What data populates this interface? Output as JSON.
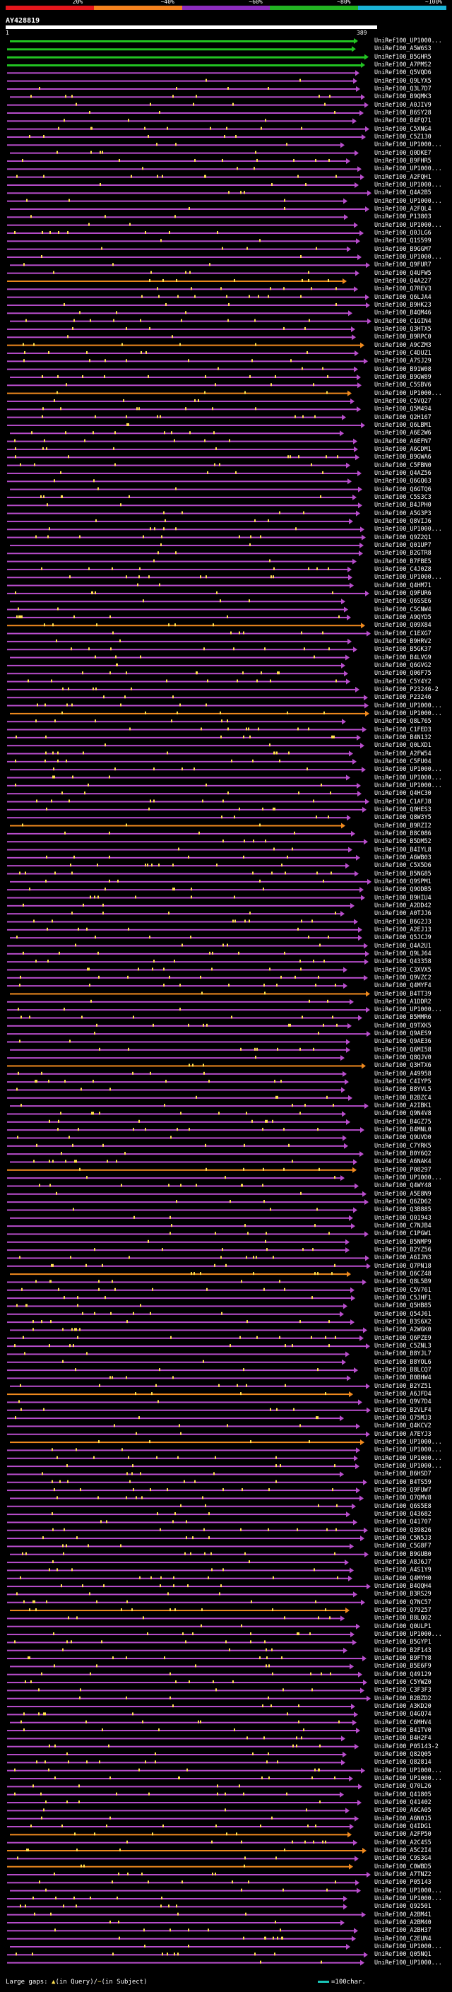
{
  "query": {
    "name": "AY428819",
    "start": "1",
    "end": "389"
  },
  "percent_scale": [
    {
      "label": "20%",
      "color": "#e4161c"
    },
    {
      "label": "~40%",
      "color": "#f5821e"
    },
    {
      "label": "~60%",
      "color": "#8c2cbe"
    },
    {
      "label": "~80%",
      "color": "#22b422"
    },
    {
      "label": "~100%",
      "color": "#1ab3d6"
    }
  ],
  "legend": {
    "large_gaps": "Large gaps: ",
    "in_query": "(in Query)",
    "separator": "/",
    "in_subject": "(in Subject)",
    "scale": "=100char."
  },
  "colors": {
    "green": "#22c322",
    "magenta": "#b84dcc",
    "orange": "#f08a1e",
    "yellow": "#ffe14d",
    "arrow": "#ffd24a"
  },
  "hits": [
    {
      "id": "UniRef100_UP1000...",
      "c": "green"
    },
    {
      "id": "UniRef100_A5W6S3",
      "c": "green"
    },
    {
      "id": "UniRef100_B5GHR5",
      "c": "green"
    },
    {
      "id": "UniRef100_A7PMS2",
      "c": "green"
    },
    {
      "id": "UniRef100_Q5VQD6",
      "c": "magenta"
    },
    {
      "id": "UniRef100_Q9LYX5",
      "c": "magenta"
    },
    {
      "id": "UniRef100_Q3L7D7",
      "c": "magenta"
    },
    {
      "id": "UniRef100_B9QMK3",
      "c": "magenta"
    },
    {
      "id": "UniRef100_A0JIV9",
      "c": "magenta"
    },
    {
      "id": "UniRef100_B6SY28",
      "c": "magenta"
    },
    {
      "id": "UniRef100_B4FQ71",
      "c": "magenta"
    },
    {
      "id": "UniRef100_C5XNG4",
      "c": "magenta"
    },
    {
      "id": "UniRef100_C5Z130",
      "c": "magenta"
    },
    {
      "id": "UniRef100_UP1000...",
      "c": "magenta"
    },
    {
      "id": "UniRef100_Q0DKE7",
      "c": "magenta"
    },
    {
      "id": "UniRef100_B9FHR5",
      "c": "magenta"
    },
    {
      "id": "UniRef100_UP1000...",
      "c": "magenta"
    },
    {
      "id": "UniRef100_A2FQH1",
      "c": "magenta"
    },
    {
      "id": "UniRef100_UP1000...",
      "c": "magenta"
    },
    {
      "id": "UniRef100_Q4A2B5",
      "c": "magenta"
    },
    {
      "id": "UniRef100_UP1000...",
      "c": "magenta"
    },
    {
      "id": "UniRef100_A2FQL4",
      "c": "magenta"
    },
    {
      "id": "UniRef100_P13803",
      "c": "magenta"
    },
    {
      "id": "UniRef100_UP1000...",
      "c": "magenta"
    },
    {
      "id": "UniRef100_Q0JLG6",
      "c": "magenta"
    },
    {
      "id": "UniRef100_Q1S599",
      "c": "magenta"
    },
    {
      "id": "UniRef100_B9GGM7",
      "c": "magenta"
    },
    {
      "id": "UniRef100_UP1000...",
      "c": "magenta"
    },
    {
      "id": "UniRef100_Q9FUR7",
      "c": "magenta"
    },
    {
      "id": "UniRef100_Q4UFW5",
      "c": "magenta"
    },
    {
      "id": "UniRef100_Q4A227",
      "c": "orange"
    },
    {
      "id": "UniRef100_Q7REV3",
      "c": "magenta"
    },
    {
      "id": "UniRef100_Q6LJA4",
      "c": "magenta"
    },
    {
      "id": "UniRef100_B9HK23",
      "c": "magenta"
    },
    {
      "id": "UniRef100_B4QM46",
      "c": "magenta"
    },
    {
      "id": "UniRef100_C1GIN4",
      "c": "magenta"
    },
    {
      "id": "UniRef100_Q3HTX5",
      "c": "magenta"
    },
    {
      "id": "UniRef100_B9RPC0",
      "c": "magenta"
    },
    {
      "id": "UniRef100_A9CZM3",
      "c": "orange"
    },
    {
      "id": "UniRef100_C4DUZ1",
      "c": "magenta"
    },
    {
      "id": "UniRef100_A7SJ29",
      "c": "magenta"
    },
    {
      "id": "UniRef100_B91W08",
      "c": "magenta"
    },
    {
      "id": "UniRef100_B9GW89",
      "c": "magenta"
    },
    {
      "id": "UniRef100_C5SBV6",
      "c": "magenta"
    },
    {
      "id": "UniRef100_UP1000...",
      "c": "orange"
    },
    {
      "id": "UniRef100_C5VQ27",
      "c": "magenta"
    },
    {
      "id": "UniRef100_Q5M494",
      "c": "magenta"
    },
    {
      "id": "UniRef100_Q2H167",
      "c": "magenta"
    },
    {
      "id": "UniRef100_Q6LBM1",
      "c": "magenta"
    },
    {
      "id": "UniRef100_A6E2W6",
      "c": "magenta"
    },
    {
      "id": "UniRef100_A6EFN7",
      "c": "magenta"
    },
    {
      "id": "UniRef100_A6CDM1",
      "c": "magenta"
    },
    {
      "id": "UniRef100_B9GWA6",
      "c": "magenta"
    },
    {
      "id": "UniRef100_C5FBN0",
      "c": "magenta"
    },
    {
      "id": "UniRef100_Q4AZ56",
      "c": "magenta"
    },
    {
      "id": "UniRef100_Q6GQ63",
      "c": "magenta"
    },
    {
      "id": "UniRef100_Q6GTQ6",
      "c": "magenta"
    },
    {
      "id": "UniRef100_C5S3C3",
      "c": "magenta"
    },
    {
      "id": "UniRef100_B4JPH0",
      "c": "magenta"
    },
    {
      "id": "UniRef100_A5G3P3",
      "c": "magenta"
    },
    {
      "id": "UniRef100_Q8VIJ6",
      "c": "magenta"
    },
    {
      "id": "UniRef100_UP1000...",
      "c": "magenta"
    },
    {
      "id": "UniRef100_Q9Z2Q1",
      "c": "magenta"
    },
    {
      "id": "UniRef100_Q01UP7",
      "c": "magenta"
    },
    {
      "id": "UniRef100_B2GTR8",
      "c": "magenta"
    },
    {
      "id": "UniRef100_B7FBE5",
      "c": "magenta"
    },
    {
      "id": "UniRef100_C4J0Z8",
      "c": "magenta"
    },
    {
      "id": "UniRef100_UP1000...",
      "c": "magenta"
    },
    {
      "id": "UniRef100_Q4HM71",
      "c": "magenta"
    },
    {
      "id": "UniRef100_Q9FUR6",
      "c": "magenta"
    },
    {
      "id": "UniRef100_Q6SSE6",
      "c": "magenta"
    },
    {
      "id": "UniRef100_C5CNW4",
      "c": "magenta"
    },
    {
      "id": "UniRef100_A9QYD5",
      "c": "magenta"
    },
    {
      "id": "UniRef100_Q09X84",
      "c": "orange"
    },
    {
      "id": "UniRef100_C1EXG7",
      "c": "magenta"
    },
    {
      "id": "UniRef100_B9HRV2",
      "c": "magenta"
    },
    {
      "id": "UniRef100_B5GK37",
      "c": "magenta"
    },
    {
      "id": "UniRef100_B4LVG9",
      "c": "magenta"
    },
    {
      "id": "UniRef100_Q6GVG2",
      "c": "magenta"
    },
    {
      "id": "UniRef100_Q06F75",
      "c": "magenta"
    },
    {
      "id": "UniRef100_C5Y4Y2",
      "c": "magenta"
    },
    {
      "id": "UniRef100_P23246-2",
      "c": "magenta"
    },
    {
      "id": "UniRef100_P23246",
      "c": "magenta"
    },
    {
      "id": "UniRef100_UP1000...",
      "c": "magenta"
    },
    {
      "id": "UniRef100_UP1000...",
      "c": "orange"
    },
    {
      "id": "UniRef100_Q8L765",
      "c": "magenta"
    },
    {
      "id": "UniRef100_C1FED3",
      "c": "magenta"
    },
    {
      "id": "UniRef100_B4N132",
      "c": "magenta"
    },
    {
      "id": "UniRef100_Q0LXD1",
      "c": "magenta"
    },
    {
      "id": "UniRef100_A2FW54",
      "c": "magenta"
    },
    {
      "id": "UniRef100_C5FU04",
      "c": "magenta"
    },
    {
      "id": "UniRef100_UP1000...",
      "c": "magenta"
    },
    {
      "id": "UniRef100_UP1000...",
      "c": "magenta"
    },
    {
      "id": "UniRef100_UP1000...",
      "c": "magenta"
    },
    {
      "id": "UniRef100_Q4HC30",
      "c": "magenta"
    },
    {
      "id": "UniRef100_C1AFJ8",
      "c": "magenta"
    },
    {
      "id": "UniRef100_Q9HES3",
      "c": "magenta"
    },
    {
      "id": "UniRef100_Q8W3Y5",
      "c": "magenta"
    },
    {
      "id": "UniRef100_B9RZI2",
      "c": "orange"
    },
    {
      "id": "UniRef100_B8C086",
      "c": "magenta"
    },
    {
      "id": "UniRef100_B5DM52",
      "c": "magenta"
    },
    {
      "id": "UniRef100_B4IYL8",
      "c": "magenta"
    },
    {
      "id": "UniRef100_A6WB03",
      "c": "magenta"
    },
    {
      "id": "UniRef100_C5X5D6",
      "c": "magenta"
    },
    {
      "id": "UniRef100_B5NG85",
      "c": "magenta"
    },
    {
      "id": "UniRef100_Q9SPM1",
      "c": "magenta"
    },
    {
      "id": "UniRef100_Q9ODB5",
      "c": "magenta"
    },
    {
      "id": "UniRef100_B9HIU4",
      "c": "magenta"
    },
    {
      "id": "UniRef100_A2DD42",
      "c": "magenta"
    },
    {
      "id": "UniRef100_A0TJJ6",
      "c": "magenta"
    },
    {
      "id": "UniRef100_B6G2J3",
      "c": "magenta"
    },
    {
      "id": "UniRef100_A2EJ13",
      "c": "magenta"
    },
    {
      "id": "UniRef100_Q5JCJ9",
      "c": "magenta"
    },
    {
      "id": "UniRef100_Q4A2U1",
      "c": "magenta"
    },
    {
      "id": "UniRef100_Q9LJ64",
      "c": "magenta"
    },
    {
      "id": "UniRef100_Q43358",
      "c": "magenta"
    },
    {
      "id": "UniRef100_C3XVX5",
      "c": "magenta"
    },
    {
      "id": "UniRef100_Q9VZC2",
      "c": "magenta"
    },
    {
      "id": "UniRef100_Q4MYF4",
      "c": "magenta"
    },
    {
      "id": "UniRef100_B4TT39",
      "c": "orange"
    },
    {
      "id": "UniRef100_A1DDR2",
      "c": "magenta"
    },
    {
      "id": "UniRef100_UP1000...",
      "c": "magenta"
    },
    {
      "id": "UniRef100_B5MMR6",
      "c": "magenta"
    },
    {
      "id": "UniRef100_Q9TXK5",
      "c": "magenta"
    },
    {
      "id": "UniRef100_Q9AES9",
      "c": "magenta"
    },
    {
      "id": "UniRef100_Q9AE36",
      "c": "magenta"
    },
    {
      "id": "UniRef100_Q6MI58",
      "c": "magenta"
    },
    {
      "id": "UniRef100_Q8QJV0",
      "c": "magenta"
    },
    {
      "id": "UniRef100_Q3HTX6",
      "c": "orange"
    },
    {
      "id": "UniRef100_A49958",
      "c": "magenta"
    },
    {
      "id": "UniRef100_C4IYP5",
      "c": "magenta"
    },
    {
      "id": "UniRef100_B8YVL5",
      "c": "magenta"
    },
    {
      "id": "UniRef100_B2BZC4",
      "c": "magenta"
    },
    {
      "id": "UniRef100_A2IBK1",
      "c": "magenta"
    },
    {
      "id": "UniRef100_Q9N4V8",
      "c": "magenta"
    },
    {
      "id": "UniRef100_B4GZ75",
      "c": "magenta"
    },
    {
      "id": "UniRef100_B4MNL0",
      "c": "magenta"
    },
    {
      "id": "UniRef100_Q9UVD0",
      "c": "magenta"
    },
    {
      "id": "UniRef100_C7YRK5",
      "c": "magenta"
    },
    {
      "id": "UniRef100_B0Y6Q2",
      "c": "magenta"
    },
    {
      "id": "UniRef100_A6NAK4",
      "c": "magenta"
    },
    {
      "id": "UniRef100_P08297",
      "c": "orange"
    },
    {
      "id": "UniRef100_UP1000...",
      "c": "magenta"
    },
    {
      "id": "UniRef100_Q4WY48",
      "c": "magenta"
    },
    {
      "id": "UniRef100_A5E8N9",
      "c": "magenta"
    },
    {
      "id": "UniRef100_Q6ZD62",
      "c": "magenta"
    },
    {
      "id": "UniRef100_Q3B885",
      "c": "magenta"
    },
    {
      "id": "UniRef100_Q01943",
      "c": "magenta"
    },
    {
      "id": "UniRef100_C7NJB4",
      "c": "magenta"
    },
    {
      "id": "UniRef100_C1PGW1",
      "c": "magenta"
    },
    {
      "id": "UniRef100_B5NMP9",
      "c": "magenta"
    },
    {
      "id": "UniRef100_B2YZ56",
      "c": "magenta"
    },
    {
      "id": "UniRef100_A6IJN3",
      "c": "magenta"
    },
    {
      "id": "UniRef100_Q7PN18",
      "c": "magenta"
    },
    {
      "id": "UniRef100_Q6CZ48",
      "c": "orange"
    },
    {
      "id": "UniRef100_Q8L5B9",
      "c": "magenta"
    },
    {
      "id": "UniRef100_C5V761",
      "c": "magenta"
    },
    {
      "id": "UniRef100_C5JHF1",
      "c": "magenta"
    },
    {
      "id": "UniRef100_Q5HB85",
      "c": "magenta"
    },
    {
      "id": "UniRef100_Q54J61",
      "c": "magenta"
    },
    {
      "id": "UniRef100_B3S6X2",
      "c": "magenta"
    },
    {
      "id": "UniRef100_A2WGK0",
      "c": "magenta"
    },
    {
      "id": "UniRef100_Q6PZE9",
      "c": "magenta"
    },
    {
      "id": "UniRef100_C5ZNL3",
      "c": "magenta"
    },
    {
      "id": "UniRef100_B8YJL7",
      "c": "magenta"
    },
    {
      "id": "UniRef100_B8YOL6",
      "c": "magenta"
    },
    {
      "id": "UniRef100_B8LCQ7",
      "c": "magenta"
    },
    {
      "id": "UniRef100_B0BHW4",
      "c": "magenta"
    },
    {
      "id": "UniRef100_B2YZ51",
      "c": "magenta"
    },
    {
      "id": "UniRef100_A6JFD4",
      "c": "orange"
    },
    {
      "id": "UniRef100_Q9V7D4",
      "c": "magenta"
    },
    {
      "id": "UniRef100_B2VLF4",
      "c": "magenta"
    },
    {
      "id": "UniRef100_Q75MJ3",
      "c": "magenta"
    },
    {
      "id": "UniRef100_Q4KCV2",
      "c": "magenta"
    },
    {
      "id": "UniRef100_A7EYJ3",
      "c": "magenta"
    },
    {
      "id": "UniRef100_UP1000...",
      "c": "orange"
    },
    {
      "id": "UniRef100_UP1000...",
      "c": "magenta"
    },
    {
      "id": "UniRef100_UP1000...",
      "c": "magenta"
    },
    {
      "id": "UniRef100_UP1000...",
      "c": "magenta"
    },
    {
      "id": "UniRef100_B6HSD7",
      "c": "magenta"
    },
    {
      "id": "UniRef100_B4TS59",
      "c": "magenta"
    },
    {
      "id": "UniRef100_Q9FUW7",
      "c": "magenta"
    },
    {
      "id": "UniRef100_Q7QMV8",
      "c": "magenta"
    },
    {
      "id": "UniRef100_Q6S5E8",
      "c": "magenta"
    },
    {
      "id": "UniRef100_Q43682",
      "c": "magenta"
    },
    {
      "id": "UniRef100_Q41707",
      "c": "magenta"
    },
    {
      "id": "UniRef100_Q39826",
      "c": "magenta"
    },
    {
      "id": "UniRef100_C5N5J3",
      "c": "magenta"
    },
    {
      "id": "UniRef100_C5G8F7",
      "c": "magenta"
    },
    {
      "id": "UniRef100_B9GUB0",
      "c": "magenta"
    },
    {
      "id": "UniRef100_A8J6J7",
      "c": "magenta"
    },
    {
      "id": "UniRef100_A4S1Y9",
      "c": "magenta"
    },
    {
      "id": "UniRef100_Q4MYH0",
      "c": "magenta"
    },
    {
      "id": "UniRef100_B4QQH4",
      "c": "magenta"
    },
    {
      "id": "UniRef100_B3RS29",
      "c": "magenta"
    },
    {
      "id": "UniRef100_Q7NC57",
      "c": "magenta"
    },
    {
      "id": "UniRef100_Q79257",
      "c": "orange"
    },
    {
      "id": "UniRef100_B8LQ02",
      "c": "magenta"
    },
    {
      "id": "UniRef100_Q0ULP1",
      "c": "magenta"
    },
    {
      "id": "UniRef100_UP1000...",
      "c": "magenta"
    },
    {
      "id": "UniRef100_B5GYP1",
      "c": "magenta"
    },
    {
      "id": "UniRef100_B2F143",
      "c": "magenta"
    },
    {
      "id": "UniRef100_B9FTY8",
      "c": "magenta"
    },
    {
      "id": "UniRef100_B5E6F9",
      "c": "magenta"
    },
    {
      "id": "UniRef100_Q49129",
      "c": "magenta"
    },
    {
      "id": "UniRef100_C5YWZ0",
      "c": "magenta"
    },
    {
      "id": "UniRef100_C3F3F3",
      "c": "magenta"
    },
    {
      "id": "UniRef100_B2BZD2",
      "c": "magenta"
    },
    {
      "id": "UniRef100_A3KD20",
      "c": "magenta"
    },
    {
      "id": "UniRef100_Q4GQ74",
      "c": "magenta"
    },
    {
      "id": "UniRef100_C6MHV4",
      "c": "magenta"
    },
    {
      "id": "UniRef100_B41TV0",
      "c": "magenta"
    },
    {
      "id": "UniRef100_B4H2F4",
      "c": "magenta"
    },
    {
      "id": "UniRef100_P05143-2",
      "c": "magenta"
    },
    {
      "id": "UniRef100_Q82Q05",
      "c": "magenta"
    },
    {
      "id": "UniRef100_Q82814",
      "c": "magenta"
    },
    {
      "id": "UniRef100_UP1000...",
      "c": "magenta"
    },
    {
      "id": "UniRef100_UP1000...",
      "c": "magenta"
    },
    {
      "id": "UniRef100_Q70L26",
      "c": "magenta"
    },
    {
      "id": "UniRef100_Q41805",
      "c": "magenta"
    },
    {
      "id": "UniRef100_Q41402",
      "c": "magenta"
    },
    {
      "id": "UniRef100_A6CA05",
      "c": "magenta"
    },
    {
      "id": "UniRef100_A6N015",
      "c": "magenta"
    },
    {
      "id": "UniRef100_Q4IDG1",
      "c": "magenta"
    },
    {
      "id": "UniRef100_A2FP50",
      "c": "orange"
    },
    {
      "id": "UniRef100_A2C4S5",
      "c": "magenta"
    },
    {
      "id": "UniRef100_A5C2I4",
      "c": "orange"
    },
    {
      "id": "UniRef100_C9S3G4",
      "c": "magenta"
    },
    {
      "id": "UniRef100_C0WBD5",
      "c": "orange"
    },
    {
      "id": "UniRef100_A7TNZ2",
      "c": "magenta"
    },
    {
      "id": "UniRef100_P05143",
      "c": "magenta"
    },
    {
      "id": "UniRef100_UP1000...",
      "c": "magenta"
    },
    {
      "id": "UniRef100_UP1000...",
      "c": "magenta"
    },
    {
      "id": "UniRef100_Q92501",
      "c": "magenta"
    },
    {
      "id": "UniRef100_A2BM41",
      "c": "magenta"
    },
    {
      "id": "UniRef100_A2BM40",
      "c": "magenta"
    },
    {
      "id": "UniRef100_A2BH37",
      "c": "magenta"
    },
    {
      "id": "UniRef100_C2EUN4",
      "c": "magenta"
    },
    {
      "id": "UniRef100_UP1000...",
      "c": "magenta"
    },
    {
      "id": "UniRef100_Q05NQ1",
      "c": "magenta"
    },
    {
      "id": "UniRef100_UP1000...",
      "c": "magenta"
    }
  ]
}
